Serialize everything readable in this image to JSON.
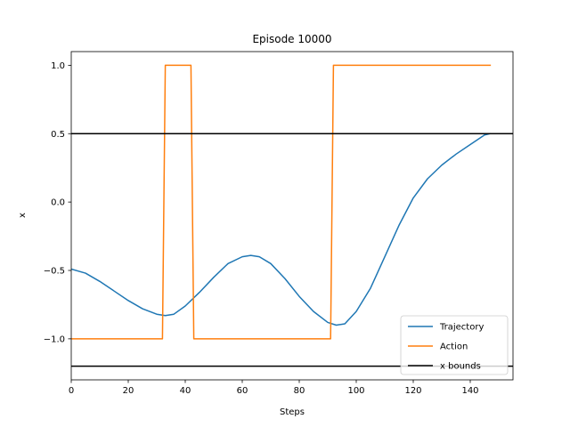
{
  "chart_data": {
    "type": "line",
    "title": "Episode 10000",
    "xlabel": "Steps",
    "ylabel": "x",
    "xlim": [
      0,
      155
    ],
    "ylim": [
      -1.3,
      1.1
    ],
    "xticks": [
      0,
      20,
      40,
      60,
      80,
      100,
      120,
      140
    ],
    "yticks": [
      -1.0,
      -0.5,
      0.0,
      0.5,
      1.0
    ],
    "ytick_labels": [
      "−1.0",
      "−0.5",
      "0.0",
      "0.5",
      "1.0"
    ],
    "grid": false,
    "legend_position": "lower-right",
    "series": [
      {
        "name": "Trajectory",
        "color": "#1f77b4",
        "x": [
          0,
          5,
          10,
          15,
          20,
          25,
          30,
          33,
          36,
          40,
          45,
          50,
          55,
          60,
          63,
          66,
          70,
          75,
          80,
          85,
          90,
          93,
          96,
          100,
          105,
          110,
          115,
          120,
          125,
          130,
          135,
          140,
          145,
          147
        ],
        "y": [
          -0.49,
          -0.52,
          -0.58,
          -0.65,
          -0.72,
          -0.78,
          -0.82,
          -0.83,
          -0.82,
          -0.76,
          -0.66,
          -0.55,
          -0.45,
          -0.4,
          -0.39,
          -0.4,
          -0.45,
          -0.56,
          -0.69,
          -0.8,
          -0.88,
          -0.9,
          -0.89,
          -0.8,
          -0.63,
          -0.4,
          -0.17,
          0.03,
          0.17,
          0.27,
          0.35,
          0.42,
          0.49,
          0.5
        ]
      },
      {
        "name": "Action",
        "color": "#ff7f0e",
        "x": [
          0,
          32,
          33,
          42,
          43,
          91,
          92,
          147
        ],
        "y": [
          -1,
          -1,
          1,
          1,
          -1,
          -1,
          1,
          1
        ]
      }
    ],
    "hlines": [
      {
        "name": "x bounds",
        "color": "#000000",
        "y": [
          0.5,
          -1.2
        ]
      }
    ]
  }
}
